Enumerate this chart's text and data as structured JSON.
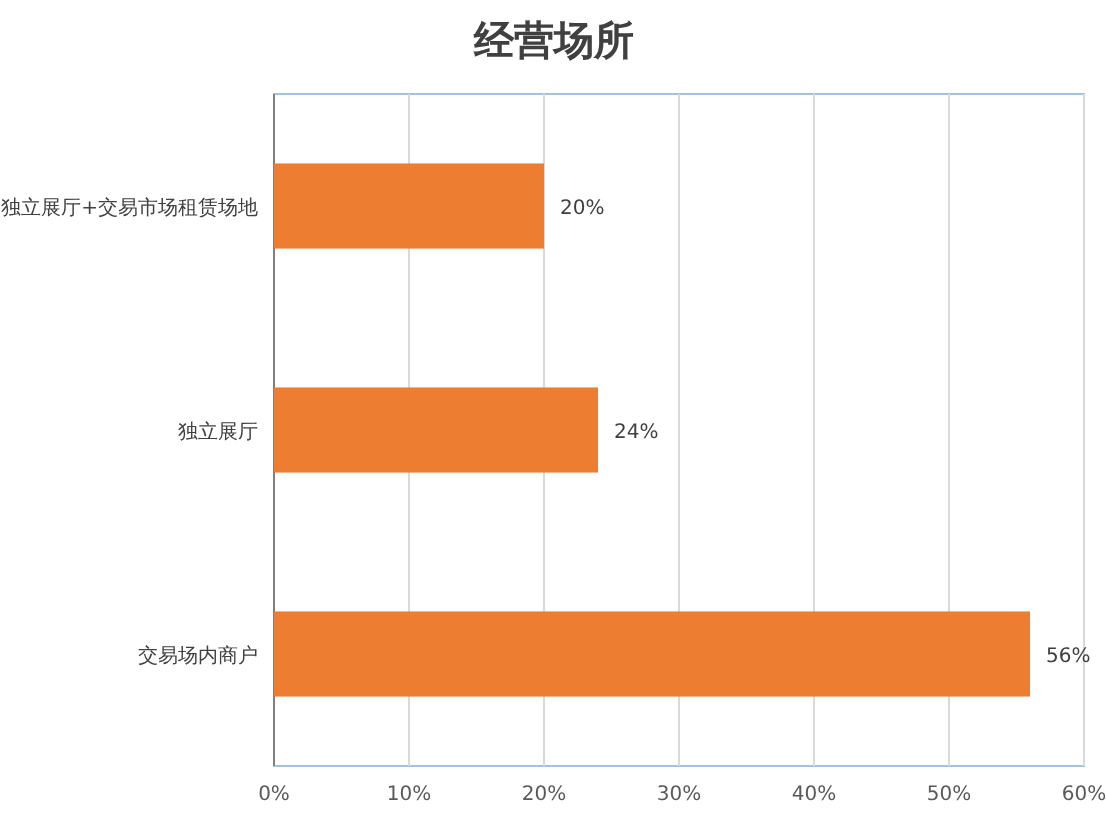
{
  "chart_data": {
    "type": "bar",
    "orientation": "horizontal",
    "title": "经营场所",
    "categories": [
      "独立展厅+交易市场租赁场地",
      "独立展厅",
      "交易场内商户"
    ],
    "values": [
      20,
      24,
      56
    ],
    "value_labels": [
      "20%",
      "24%",
      "56%"
    ],
    "color": "#ed7d31",
    "xlim": [
      0,
      60
    ],
    "xticks": [
      {
        "value": 0,
        "label": "0%"
      },
      {
        "value": 10,
        "label": "10%"
      },
      {
        "value": 20,
        "label": "20%"
      },
      {
        "value": 30,
        "label": "30%"
      },
      {
        "value": 40,
        "label": "40%"
      },
      {
        "value": 50,
        "label": "50%"
      },
      {
        "value": 60,
        "label": "60%"
      }
    ],
    "grid": "x"
  }
}
